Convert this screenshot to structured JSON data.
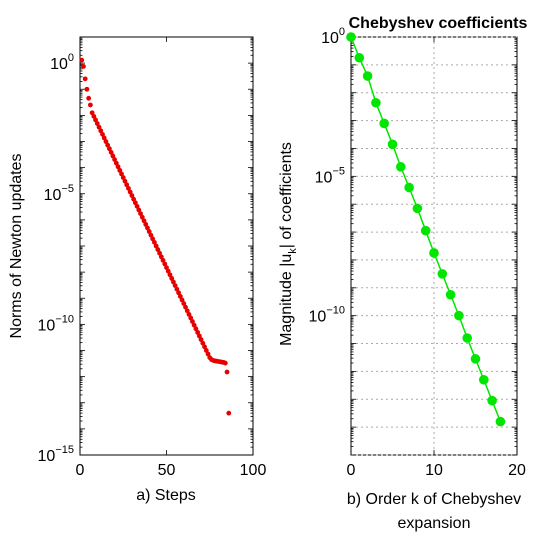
{
  "chart_data": [
    {
      "type": "scatter",
      "title": "",
      "xlabel": "a) Steps",
      "ylabel": "Norms of Newton updates",
      "xlim": [
        0,
        100
      ],
      "ylim": [
        1e-15,
        10.0
      ],
      "y_scale": "log",
      "grid": false,
      "x_ticks": [
        0,
        50,
        100
      ],
      "x_tick_labels": [
        "0",
        "50",
        "100"
      ],
      "y_ticks": [
        {
          "value": 1,
          "base": "10",
          "exp": "0"
        },
        {
          "value": 1e-05,
          "base": "10",
          "exp": "−5"
        },
        {
          "value": 1e-10,
          "base": "10",
          "exp": "−10"
        },
        {
          "value": 1e-15,
          "base": "10",
          "exp": "−15"
        }
      ],
      "series": [
        {
          "color": "#e60000",
          "x": [
            1,
            2,
            3,
            4,
            5,
            6,
            7,
            8,
            9,
            10,
            11,
            12,
            13,
            14,
            15,
            16,
            17,
            18,
            19,
            20,
            21,
            22,
            23,
            24,
            25,
            26,
            27,
            28,
            29,
            30,
            31,
            32,
            33,
            34,
            35,
            36,
            37,
            38,
            39,
            40,
            41,
            42,
            43,
            44,
            45,
            46,
            47,
            48,
            49,
            50,
            51,
            52,
            53,
            54,
            55,
            56,
            57,
            58,
            59,
            60,
            61,
            62,
            63,
            64,
            65,
            66,
            67,
            68,
            69,
            70,
            71,
            72,
            73,
            74,
            75,
            76,
            77,
            78,
            79,
            80,
            81,
            82,
            83,
            84,
            85,
            86
          ],
          "y": [
            1.3,
            0.75,
            0.25,
            0.1,
            0.045,
            0.025,
            0.0126,
            0.00917,
            0.00668,
            0.00486,
            0.00354,
            0.00258,
            0.00188,
            0.00137,
            0.000995,
            0.000725,
            0.000528,
            0.000384,
            0.00028,
            0.000204,
            0.000148,
            0.000108,
            7.85e-05,
            5.72e-05,
            4.16e-05,
            3.03e-05,
            2.21e-05,
            1.61e-05,
            1.17e-05,
            8.52e-06,
            6.2e-06,
            4.52e-06,
            3.29e-06,
            2.39e-06,
            1.74e-06,
            1.27e-06,
            9.24e-07,
            6.73e-07,
            4.9e-07,
            3.57e-07,
            2.6e-07,
            1.89e-07,
            1.38e-07,
            1e-07,
            7.3e-08,
            5.31e-08,
            3.87e-08,
            2.82e-08,
            2.05e-08,
            1.49e-08,
            1.09e-08,
            7.91e-09,
            5.76e-09,
            4.19e-09,
            3.05e-09,
            2.22e-09,
            1.62e-09,
            1.18e-09,
            8.58e-10,
            6.25e-10,
            4.55e-10,
            3.31e-10,
            2.41e-10,
            1.76e-10,
            1.28e-10,
            9.31e-11,
            6.78e-11,
            4.94e-11,
            3.59e-11,
            2.62e-11,
            1.9e-11,
            1.39e-11,
            1.01e-11,
            7.35e-12,
            5.35e-12,
            4.5e-12,
            4.2e-12,
            4e-12,
            3.9e-12,
            3.8e-12,
            3.7e-12,
            3.6e-12,
            3.5e-12,
            3.3e-12,
            1.5e-12,
            4e-14
          ]
        }
      ]
    },
    {
      "type": "line",
      "title": "Chebyshev coefficients",
      "xlabel": [
        "b) Order k of Chebyshev",
        "expansion"
      ],
      "ylabel": "Magnitude |u_k| of coefficients",
      "ylabel_parts": {
        "pre": "Magnitude |u",
        "sub": "k",
        "post": "| of coefficients"
      },
      "xlim": [
        0,
        20
      ],
      "ylim": [
        1e-15,
        1
      ],
      "y_scale": "log",
      "grid": true,
      "x_ticks": [
        0,
        10,
        20
      ],
      "x_tick_labels": [
        "0",
        "10",
        "20"
      ],
      "y_ticks": [
        {
          "value": 1,
          "base": "10",
          "exp": "0"
        },
        {
          "value": 1e-05,
          "base": "10",
          "exp": "−5"
        },
        {
          "value": 1e-10,
          "base": "10",
          "exp": "−10"
        }
      ],
      "series": [
        {
          "color": "#00e600",
          "x": [
            0,
            1,
            2,
            3,
            4,
            5,
            6,
            7,
            8,
            9,
            10,
            11,
            12,
            13,
            14,
            15,
            16,
            17,
            18
          ],
          "y": [
            1.0,
            0.18,
            0.0398,
            0.00437,
            0.00079,
            0.000141,
            2.19e-05,
            3.98e-06,
            7.08e-07,
            1.12e-07,
            1.78e-08,
            3.16e-09,
            5.62e-10,
            1e-10,
            1.58e-11,
            2.82e-12,
            5.01e-13,
            8.91e-14,
            1.58e-14
          ]
        }
      ]
    }
  ]
}
